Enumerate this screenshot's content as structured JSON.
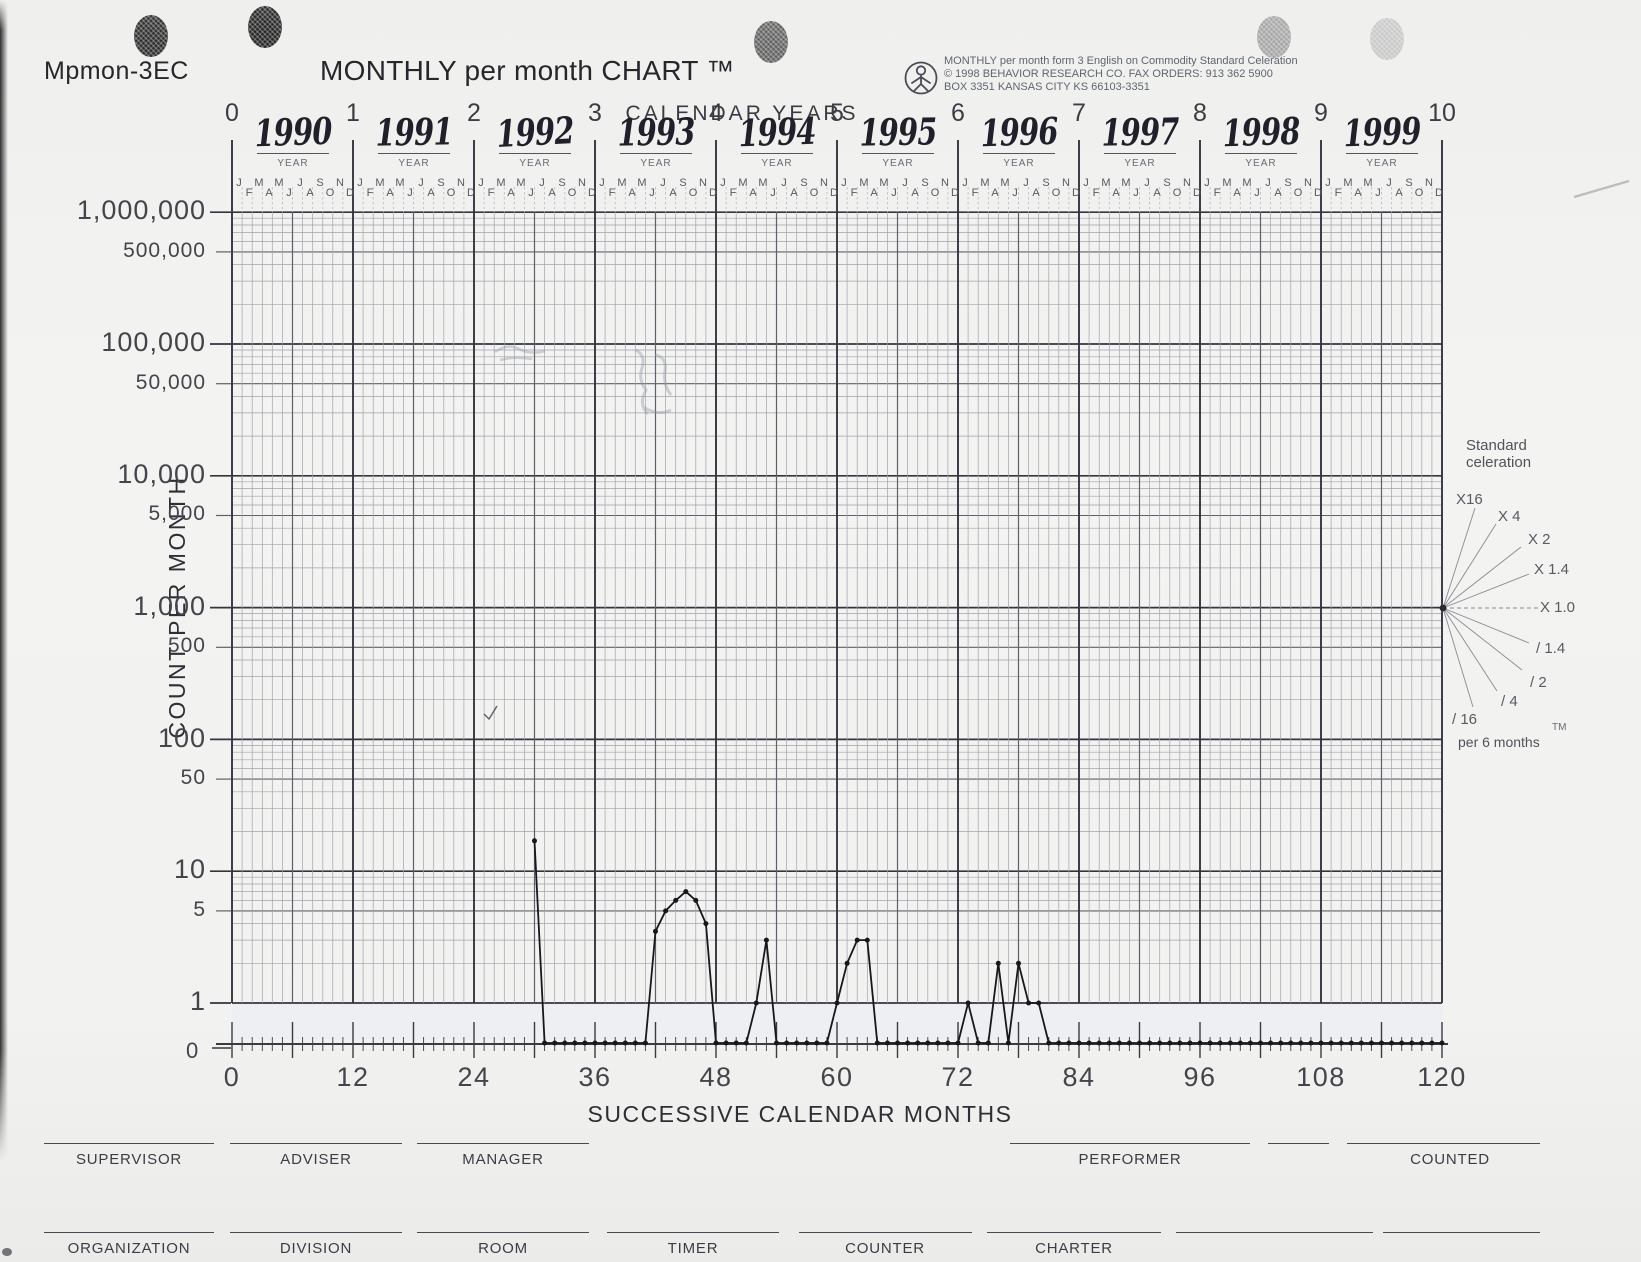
{
  "page": {
    "form_code": "Mpmon-3EC",
    "title": "MONTHLY per month CHART ™",
    "publisher": [
      "MONTHLY per month form 3 English on Commodity   Standard Celeration",
      "© 1998 BEHAVIOR RESEARCH CO. FAX ORDERS: 913 362 5900",
      "BOX 3351  KANSAS CITY  KS  66103-3351"
    ]
  },
  "chart_data": {
    "type": "line",
    "title": "MONTHLY per month CHART",
    "xlabel": "SUCCESSIVE CALENDAR MONTHS",
    "ylabel": "COUNT PER MONTH",
    "calendar_years_label": "CALENDAR YEARS",
    "year_numbers": [
      "0",
      "1",
      "2",
      "3",
      "4",
      "5",
      "6",
      "7",
      "8",
      "9",
      "10"
    ],
    "handwritten_years": [
      "1990",
      "1991",
      "1992",
      "1993",
      "1994",
      "1995",
      "1996",
      "1997",
      "1998",
      "1999"
    ],
    "year_field_label": "YEAR",
    "month_letters_top": [
      "J",
      "M",
      "M",
      "J",
      "S",
      "N"
    ],
    "month_letters_bottom": [
      "F",
      "A",
      "J",
      "A",
      "O",
      "D"
    ],
    "x_axis": {
      "min": 0,
      "max": 120,
      "tick_step": 12,
      "tick_labels": [
        "0",
        "12",
        "24",
        "36",
        "48",
        "60",
        "72",
        "84",
        "96",
        "108",
        "120"
      ]
    },
    "y_axis": {
      "scale": "log",
      "min": 1,
      "max": 1000000,
      "zero_label": "0",
      "labels": [
        {
          "v": 1000000,
          "t": "1,000,000",
          "major": true
        },
        {
          "v": 500000,
          "t": "500,000",
          "major": false
        },
        {
          "v": 100000,
          "t": "100,000",
          "major": true
        },
        {
          "v": 50000,
          "t": "50,000",
          "major": false
        },
        {
          "v": 10000,
          "t": "10,000",
          "major": true
        },
        {
          "v": 5000,
          "t": "5,000",
          "major": false
        },
        {
          "v": 1000,
          "t": "1,000",
          "major": true
        },
        {
          "v": 500,
          "t": "500",
          "major": false
        },
        {
          "v": 100,
          "t": "100",
          "major": true
        },
        {
          "v": 50,
          "t": "50",
          "major": false
        },
        {
          "v": 10,
          "t": "10",
          "major": true
        },
        {
          "v": 5,
          "t": "5",
          "major": false
        },
        {
          "v": 1,
          "t": "1",
          "major": true
        }
      ]
    },
    "celeration_fan": {
      "title_line1": "Standard",
      "title_line2": "celeration",
      "labels": [
        "X16",
        "X 4",
        "X 2",
        "X 1.4",
        "X 1.0",
        "/ 1.4",
        "/ 2",
        "/ 4",
        "/ 16"
      ],
      "tm": "TM",
      "footer": "per 6 months"
    },
    "series": [
      {
        "name": "count per month",
        "points": [
          [
            30,
            17
          ],
          [
            31,
            0
          ],
          [
            32,
            0
          ],
          [
            33,
            0
          ],
          [
            34,
            0
          ],
          [
            35,
            0
          ],
          [
            36,
            0
          ],
          [
            37,
            0
          ],
          [
            38,
            0
          ],
          [
            39,
            0
          ],
          [
            40,
            0
          ],
          [
            41,
            0
          ],
          [
            42,
            3.5
          ],
          [
            43,
            5
          ],
          [
            44,
            6
          ],
          [
            45,
            7
          ],
          [
            46,
            6
          ],
          [
            47,
            4
          ],
          [
            48,
            0
          ],
          [
            49,
            0
          ],
          [
            50,
            0
          ],
          [
            51,
            0
          ],
          [
            52,
            1
          ],
          [
            53,
            3
          ],
          [
            54,
            0
          ],
          [
            55,
            0
          ],
          [
            56,
            0
          ],
          [
            57,
            0
          ],
          [
            58,
            0
          ],
          [
            59,
            0
          ],
          [
            60,
            1
          ],
          [
            61,
            2
          ],
          [
            62,
            3
          ],
          [
            63,
            3
          ],
          [
            64,
            0
          ],
          [
            65,
            0
          ],
          [
            66,
            0
          ],
          [
            67,
            0
          ],
          [
            68,
            0
          ],
          [
            69,
            0
          ],
          [
            70,
            0
          ],
          [
            71,
            0
          ],
          [
            72,
            0
          ],
          [
            73,
            1
          ],
          [
            74,
            0
          ],
          [
            75,
            0
          ],
          [
            76,
            2
          ],
          [
            77,
            0
          ],
          [
            78,
            2
          ],
          [
            79,
            1
          ],
          [
            80,
            1
          ],
          [
            81,
            0
          ],
          [
            82,
            0
          ],
          [
            83,
            0
          ],
          [
            84,
            0
          ],
          [
            85,
            0
          ],
          [
            86,
            0
          ],
          [
            87,
            0
          ],
          [
            88,
            0
          ],
          [
            89,
            0
          ],
          [
            90,
            0
          ],
          [
            91,
            0
          ],
          [
            92,
            0
          ],
          [
            93,
            0
          ],
          [
            94,
            0
          ],
          [
            95,
            0
          ],
          [
            96,
            0
          ],
          [
            97,
            0
          ],
          [
            98,
            0
          ],
          [
            99,
            0
          ],
          [
            100,
            0
          ],
          [
            101,
            0
          ],
          [
            102,
            0
          ],
          [
            103,
            0
          ],
          [
            104,
            0
          ],
          [
            105,
            0
          ],
          [
            106,
            0
          ],
          [
            107,
            0
          ],
          [
            108,
            0
          ],
          [
            109,
            0
          ],
          [
            110,
            0
          ],
          [
            111,
            0
          ],
          [
            112,
            0
          ],
          [
            113,
            0
          ],
          [
            114,
            0
          ],
          [
            115,
            0
          ],
          [
            116,
            0
          ],
          [
            117,
            0
          ],
          [
            118,
            0
          ],
          [
            119,
            0
          ],
          [
            120,
            0
          ]
        ]
      }
    ]
  },
  "footer_fields": {
    "row1": [
      "SUPERVISOR",
      "ADVISER",
      "MANAGER",
      "PERFORMER",
      "COUNTED"
    ],
    "row2": [
      "ORGANIZATION",
      "DIVISION",
      "ROOM",
      "TIMER",
      "COUNTER",
      "CHARTER"
    ]
  },
  "colors": {
    "ink": "#17171c",
    "grid_minor": "#a2a2ae",
    "grid_mid": "#60606c",
    "grid_major": "#35353f",
    "print_gray": "#44444c"
  }
}
